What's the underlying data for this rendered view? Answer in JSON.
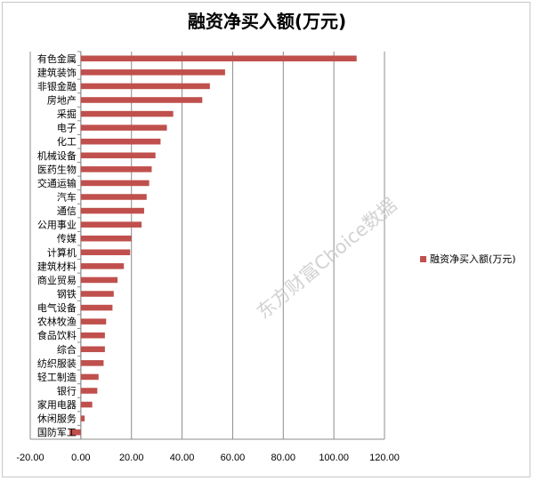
{
  "chart_data": {
    "type": "bar",
    "orientation": "horizontal",
    "title": "融资净买入额(万元)",
    "categories": [
      "有色金属",
      "建筑装饰",
      "非银金融",
      "房地产",
      "采掘",
      "电子",
      "化工",
      "机械设备",
      "医药生物",
      "交通运输",
      "汽车",
      "通信",
      "公用事业",
      "传媒",
      "计算机",
      "建筑材料",
      "商业贸易",
      "钢铁",
      "电气设备",
      "农林牧渔",
      "食品饮料",
      "综合",
      "纺织服装",
      "轻工制造",
      "银行",
      "家用电器",
      "休闲服务",
      "国防军工"
    ],
    "series": [
      {
        "name": "融资净买入额(万元)",
        "values": [
          109,
          57,
          51,
          48,
          36.5,
          34,
          31.5,
          29.5,
          28,
          27,
          26,
          25,
          24,
          20,
          19.5,
          17,
          14.5,
          13,
          12.5,
          10,
          9.5,
          9.5,
          9,
          7,
          6.5,
          4.5,
          1.5,
          -4.5
        ]
      }
    ],
    "xlim": [
      -20,
      120
    ],
    "xticks": [
      "-20.00",
      "0.00",
      "20.00",
      "40.00",
      "60.00",
      "80.00",
      "100.00",
      "120.00"
    ],
    "xtick_values": [
      -20,
      0,
      20,
      40,
      60,
      80,
      100,
      120
    ],
    "grid": "vertical",
    "legend": "right",
    "color": "#c0504d"
  },
  "watermark": "东方财富Choice数据"
}
